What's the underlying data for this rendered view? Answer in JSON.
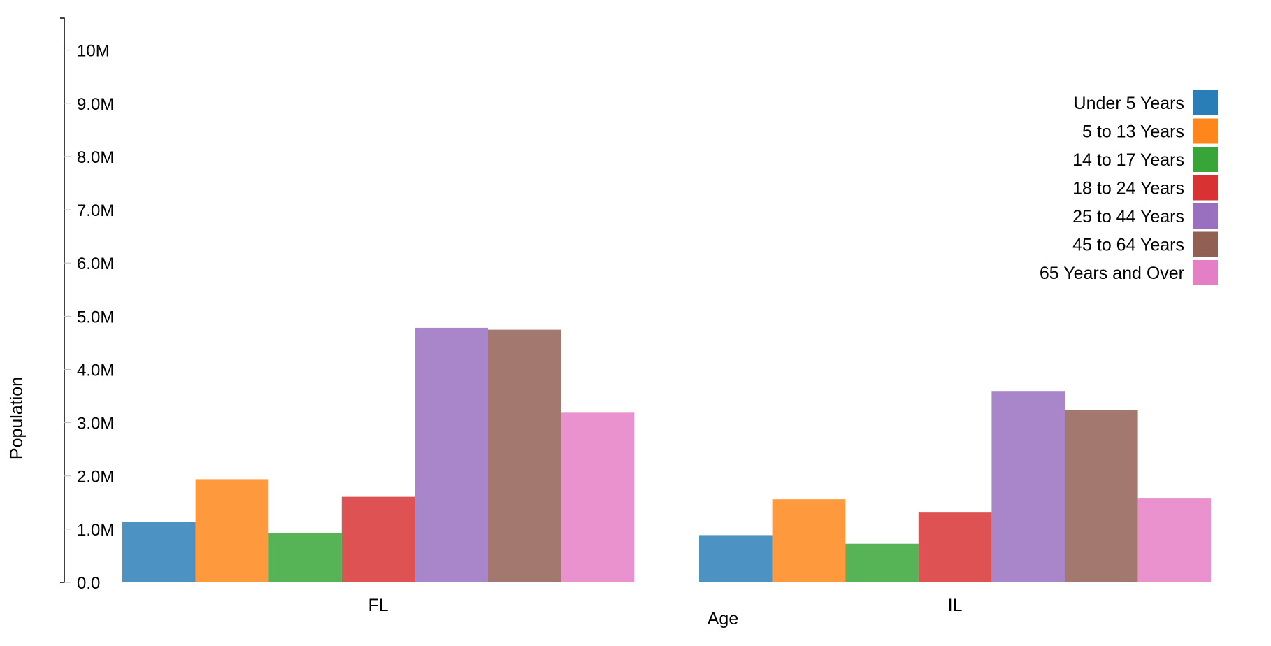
{
  "chart_data": {
    "type": "bar",
    "title": "",
    "xlabel": "Age",
    "ylabel": "Population",
    "categories": [
      "FL",
      "IL"
    ],
    "series": [
      {
        "name": "Under 5 Years",
        "color": "#1f77b4",
        "values": [
          1140516,
          887508
        ]
      },
      {
        "name": "5 to 13 Years",
        "color": "#ff7f0e",
        "values": [
          1938695,
          1560552
        ]
      },
      {
        "name": "14 to 17 Years",
        "color": "#2ca02c",
        "values": [
          925060,
          725973
        ]
      },
      {
        "name": "18 to 24 Years",
        "color": "#d62728",
        "values": [
          1607297,
          1311479
        ]
      },
      {
        "name": "25 to 44 Years",
        "color": "#9467bd",
        "values": [
          4782119,
          3596343
        ]
      },
      {
        "name": "45 to 64 Years",
        "color": "#8c564b",
        "values": [
          4746856,
          3239173
        ]
      },
      {
        "name": "65 Years and Over",
        "color": "#e377c2",
        "values": [
          3187797,
          1575308
        ]
      }
    ],
    "yticks": [
      {
        "value": 0,
        "label": "0.0"
      },
      {
        "value": 1000000,
        "label": "1.0M"
      },
      {
        "value": 2000000,
        "label": "2.0M"
      },
      {
        "value": 3000000,
        "label": "3.0M"
      },
      {
        "value": 4000000,
        "label": "4.0M"
      },
      {
        "value": 5000000,
        "label": "5.0M"
      },
      {
        "value": 6000000,
        "label": "6.0M"
      },
      {
        "value": 7000000,
        "label": "7.0M"
      },
      {
        "value": 8000000,
        "label": "8.0M"
      },
      {
        "value": 9000000,
        "label": "9.0M"
      },
      {
        "value": 10000000,
        "label": "10M"
      }
    ],
    "ylim": [
      0,
      10600000
    ],
    "legend_position": "top-right",
    "grid": false,
    "bar_opacity": 0.8
  }
}
